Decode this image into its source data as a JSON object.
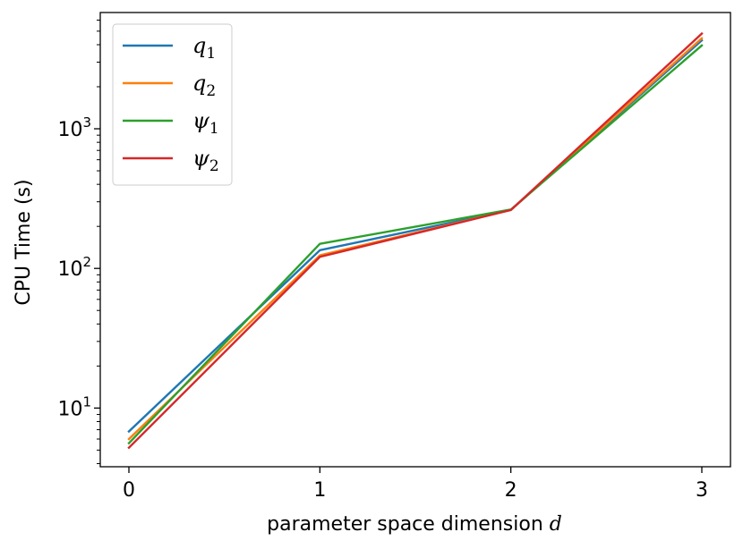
{
  "chart_data": {
    "type": "line",
    "xlabel": "parameter space dimension ",
    "xlabel_var": "d",
    "ylabel": "CPU Time (s)",
    "yscale": "log",
    "xlim": [
      -0.15,
      3.15
    ],
    "ylim": [
      3.8,
      6800
    ],
    "xticks": [
      0,
      1,
      2,
      3
    ],
    "xtick_labels": [
      "0",
      "1",
      "2",
      "3"
    ],
    "yticks": [
      {
        "value": 10,
        "base": "10",
        "exp": "1"
      },
      {
        "value": 100,
        "base": "10",
        "exp": "2"
      },
      {
        "value": 1000,
        "base": "10",
        "exp": "3"
      }
    ],
    "legend_position": "upper-left",
    "x": [
      0,
      1,
      2,
      3
    ],
    "series": [
      {
        "name": "q",
        "sub": "1",
        "color": "#1f77b4",
        "values": [
          6.8,
          135,
          262,
          4300
        ]
      },
      {
        "name": "q",
        "sub": "2",
        "color": "#ff7f0e",
        "values": [
          6.0,
          124,
          262,
          4450
        ]
      },
      {
        "name": "ψ",
        "sub": "1",
        "color": "#2ca02c",
        "values": [
          5.6,
          150,
          264,
          3950
        ]
      },
      {
        "name": "ψ",
        "sub": "2",
        "color": "#d62728",
        "values": [
          5.2,
          121,
          262,
          4800
        ]
      }
    ]
  }
}
